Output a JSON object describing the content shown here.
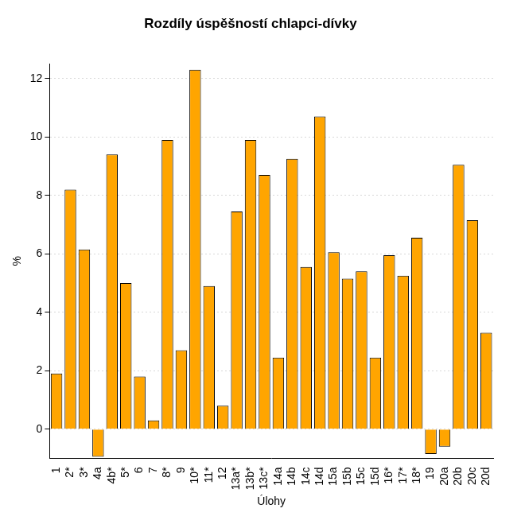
{
  "chart_data": {
    "type": "bar",
    "title": "Rozdíly úspěšností chlapci-dívky",
    "x_label": "Úlohy",
    "y_label": "%",
    "categories": [
      "1",
      "2*",
      "3*",
      "4a",
      "4b*",
      "5*",
      "6",
      "7",
      "8*",
      "9",
      "10*",
      "11*",
      "12",
      "13a*",
      "13b*",
      "13c*",
      "14a",
      "14b",
      "14c",
      "14d",
      "15a",
      "15b",
      "15c",
      "15d",
      "16*",
      "17*",
      "18*",
      "19",
      "20a",
      "20b",
      "20c",
      "20d"
    ],
    "values": [
      1.9,
      8.2,
      6.15,
      -0.95,
      9.4,
      5.0,
      1.8,
      0.3,
      9.9,
      2.7,
      12.3,
      4.9,
      0.8,
      7.45,
      9.9,
      8.7,
      2.45,
      9.25,
      5.55,
      10.7,
      6.05,
      5.15,
      5.4,
      2.45,
      5.95,
      5.25,
      6.55,
      -0.85,
      -0.6,
      9.05,
      7.15,
      3.3
    ],
    "color": "#ffa500",
    "ylim": [
      -1,
      12.5
    ],
    "yticks": [
      0,
      2,
      4,
      6,
      8,
      10,
      12
    ],
    "grid": true
  }
}
